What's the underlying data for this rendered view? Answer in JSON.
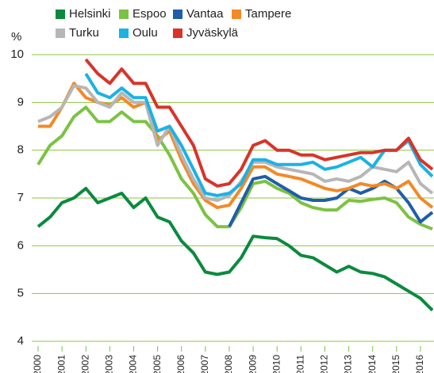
{
  "chart_data": {
    "type": "line",
    "y_label": "%",
    "x": [
      2000,
      2000.5,
      2001,
      2001.5,
      2002,
      2002.5,
      2003,
      2003.5,
      2004,
      2004.5,
      2005,
      2005.5,
      2006,
      2006.5,
      2007,
      2007.5,
      2008,
      2008.5,
      2009,
      2009.5,
      2010,
      2010.5,
      2011,
      2011.5,
      2012,
      2012.5,
      2013,
      2013.5,
      2014,
      2014.5,
      2015,
      2015.5,
      2016,
      2016.5
    ],
    "xlim": [
      2000,
      2016.5
    ],
    "xticks": [
      2000,
      2001,
      2002,
      2003,
      2004,
      2005,
      2006,
      2007,
      2008,
      2009,
      2010,
      2011,
      2012,
      2013,
      2014,
      2015,
      2016
    ],
    "ylim": [
      4,
      10
    ],
    "yticks": [
      4,
      5,
      6,
      7,
      8,
      9,
      10
    ],
    "grid": true,
    "series": [
      {
        "name": "Helsinki",
        "color": "#0b8a3e",
        "values": [
          6.4,
          6.6,
          6.9,
          7.0,
          7.2,
          6.9,
          7.0,
          7.1,
          6.8,
          7.0,
          6.6,
          6.5,
          6.1,
          5.85,
          5.45,
          5.4,
          5.45,
          5.75,
          6.2,
          6.17,
          6.15,
          6.0,
          5.8,
          5.75,
          5.6,
          5.45,
          5.57,
          5.45,
          5.42,
          5.35,
          5.2,
          5.05,
          4.9,
          4.65
        ]
      },
      {
        "name": "Espoo",
        "color": "#7cc242",
        "values": [
          7.7,
          8.1,
          8.3,
          8.7,
          8.9,
          8.6,
          8.6,
          8.8,
          8.6,
          8.6,
          8.3,
          7.9,
          7.4,
          7.1,
          6.65,
          6.4,
          6.4,
          6.8,
          7.3,
          7.35,
          7.2,
          7.1,
          6.9,
          6.8,
          6.75,
          6.75,
          6.95,
          6.93,
          6.97,
          7.0,
          6.9,
          6.6,
          6.45,
          6.35
        ]
      },
      {
        "name": "Vantaa",
        "color": "#1f5ea8",
        "values": [
          null,
          null,
          null,
          null,
          null,
          null,
          null,
          null,
          null,
          null,
          null,
          null,
          null,
          null,
          null,
          null,
          6.4,
          6.9,
          7.4,
          7.45,
          7.3,
          7.15,
          7.0,
          6.95,
          6.95,
          7.0,
          7.2,
          7.1,
          7.2,
          7.35,
          7.2,
          6.9,
          6.5,
          6.7
        ]
      },
      {
        "name": "Tampere",
        "color": "#f28a26",
        "values": [
          8.5,
          8.5,
          8.9,
          9.4,
          9.1,
          9.0,
          8.95,
          9.1,
          8.9,
          9.0,
          8.2,
          8.4,
          7.8,
          7.3,
          6.95,
          6.8,
          6.85,
          7.2,
          7.65,
          7.65,
          7.5,
          7.45,
          7.4,
          7.3,
          7.2,
          7.15,
          7.2,
          7.3,
          7.25,
          7.3,
          7.2,
          7.35,
          7.0,
          6.8
        ]
      },
      {
        "name": "Turku",
        "color": "#b6b6b6",
        "values": [
          8.6,
          8.7,
          8.9,
          9.35,
          9.3,
          9.0,
          8.9,
          9.2,
          9.0,
          9.0,
          8.1,
          8.5,
          7.9,
          7.4,
          7.0,
          6.95,
          7.05,
          7.35,
          7.75,
          7.75,
          7.65,
          7.6,
          7.55,
          7.5,
          7.35,
          7.4,
          7.35,
          7.45,
          7.65,
          7.6,
          7.55,
          7.75,
          7.3,
          7.1
        ]
      },
      {
        "name": "Oulu",
        "color": "#1bb2e6",
        "values": [
          null,
          null,
          null,
          null,
          9.6,
          9.2,
          9.1,
          9.3,
          9.1,
          9.1,
          8.4,
          8.5,
          8.1,
          7.6,
          7.1,
          7.05,
          7.1,
          7.3,
          7.8,
          7.8,
          7.7,
          7.7,
          7.7,
          7.75,
          7.6,
          7.65,
          7.75,
          7.85,
          7.65,
          8.0,
          8.0,
          8.2,
          7.7,
          7.45
        ]
      },
      {
        "name": "Jyväskylä",
        "color": "#d8342a",
        "values": [
          null,
          null,
          null,
          null,
          9.9,
          9.6,
          9.4,
          9.7,
          9.4,
          9.4,
          8.9,
          8.9,
          8.5,
          8.1,
          7.4,
          7.25,
          7.3,
          7.6,
          8.1,
          8.2,
          8.0,
          8.0,
          7.9,
          7.9,
          7.8,
          7.85,
          7.9,
          7.95,
          7.95,
          8.0,
          8.0,
          8.25,
          7.8,
          7.6
        ]
      }
    ]
  }
}
